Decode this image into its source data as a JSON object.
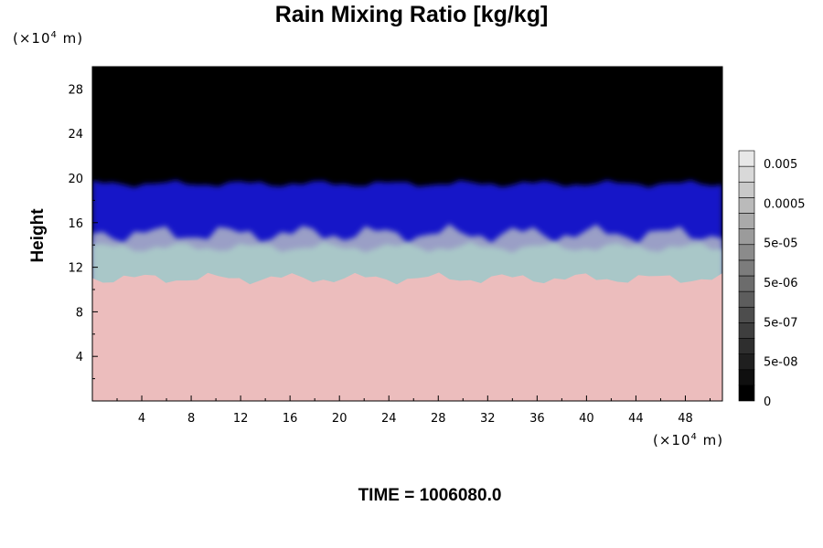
{
  "chart_data": {
    "type": "heatmap",
    "title": "Rain Mixing Ratio [kg/kg]",
    "ylabel": "Height",
    "x_unit": "m",
    "x_unit_mult": "×10",
    "x_unit_exp": "4",
    "y_unit": "m",
    "y_unit_mult": "×10",
    "y_unit_exp": "4",
    "xlim": [
      0,
      51
    ],
    "ylim": [
      0,
      30
    ],
    "x_ticks": [
      4,
      8,
      12,
      16,
      20,
      24,
      28,
      32,
      36,
      40,
      44,
      48
    ],
    "y_ticks": [
      4,
      8,
      12,
      16,
      20,
      24,
      28
    ],
    "layers": [
      {
        "name": "lower",
        "y_range": [
          0,
          11
        ],
        "color": "#ecbdbd"
      },
      {
        "name": "mixed",
        "y_range": [
          11,
          15
        ],
        "color": "#9a9fc6"
      },
      {
        "name": "upper",
        "y_range": [
          15,
          19.5
        ],
        "color": "#1414c8"
      },
      {
        "name": "top",
        "y_range": [
          19.5,
          30
        ],
        "color": "#000000"
      }
    ],
    "colorbar": {
      "labels": [
        "0.005",
        "0.0005",
        "5e-05",
        "5e-06",
        "5e-07",
        "5e-08",
        "0"
      ],
      "levels": 16
    },
    "time_text": "TIME = 1006080.0"
  }
}
